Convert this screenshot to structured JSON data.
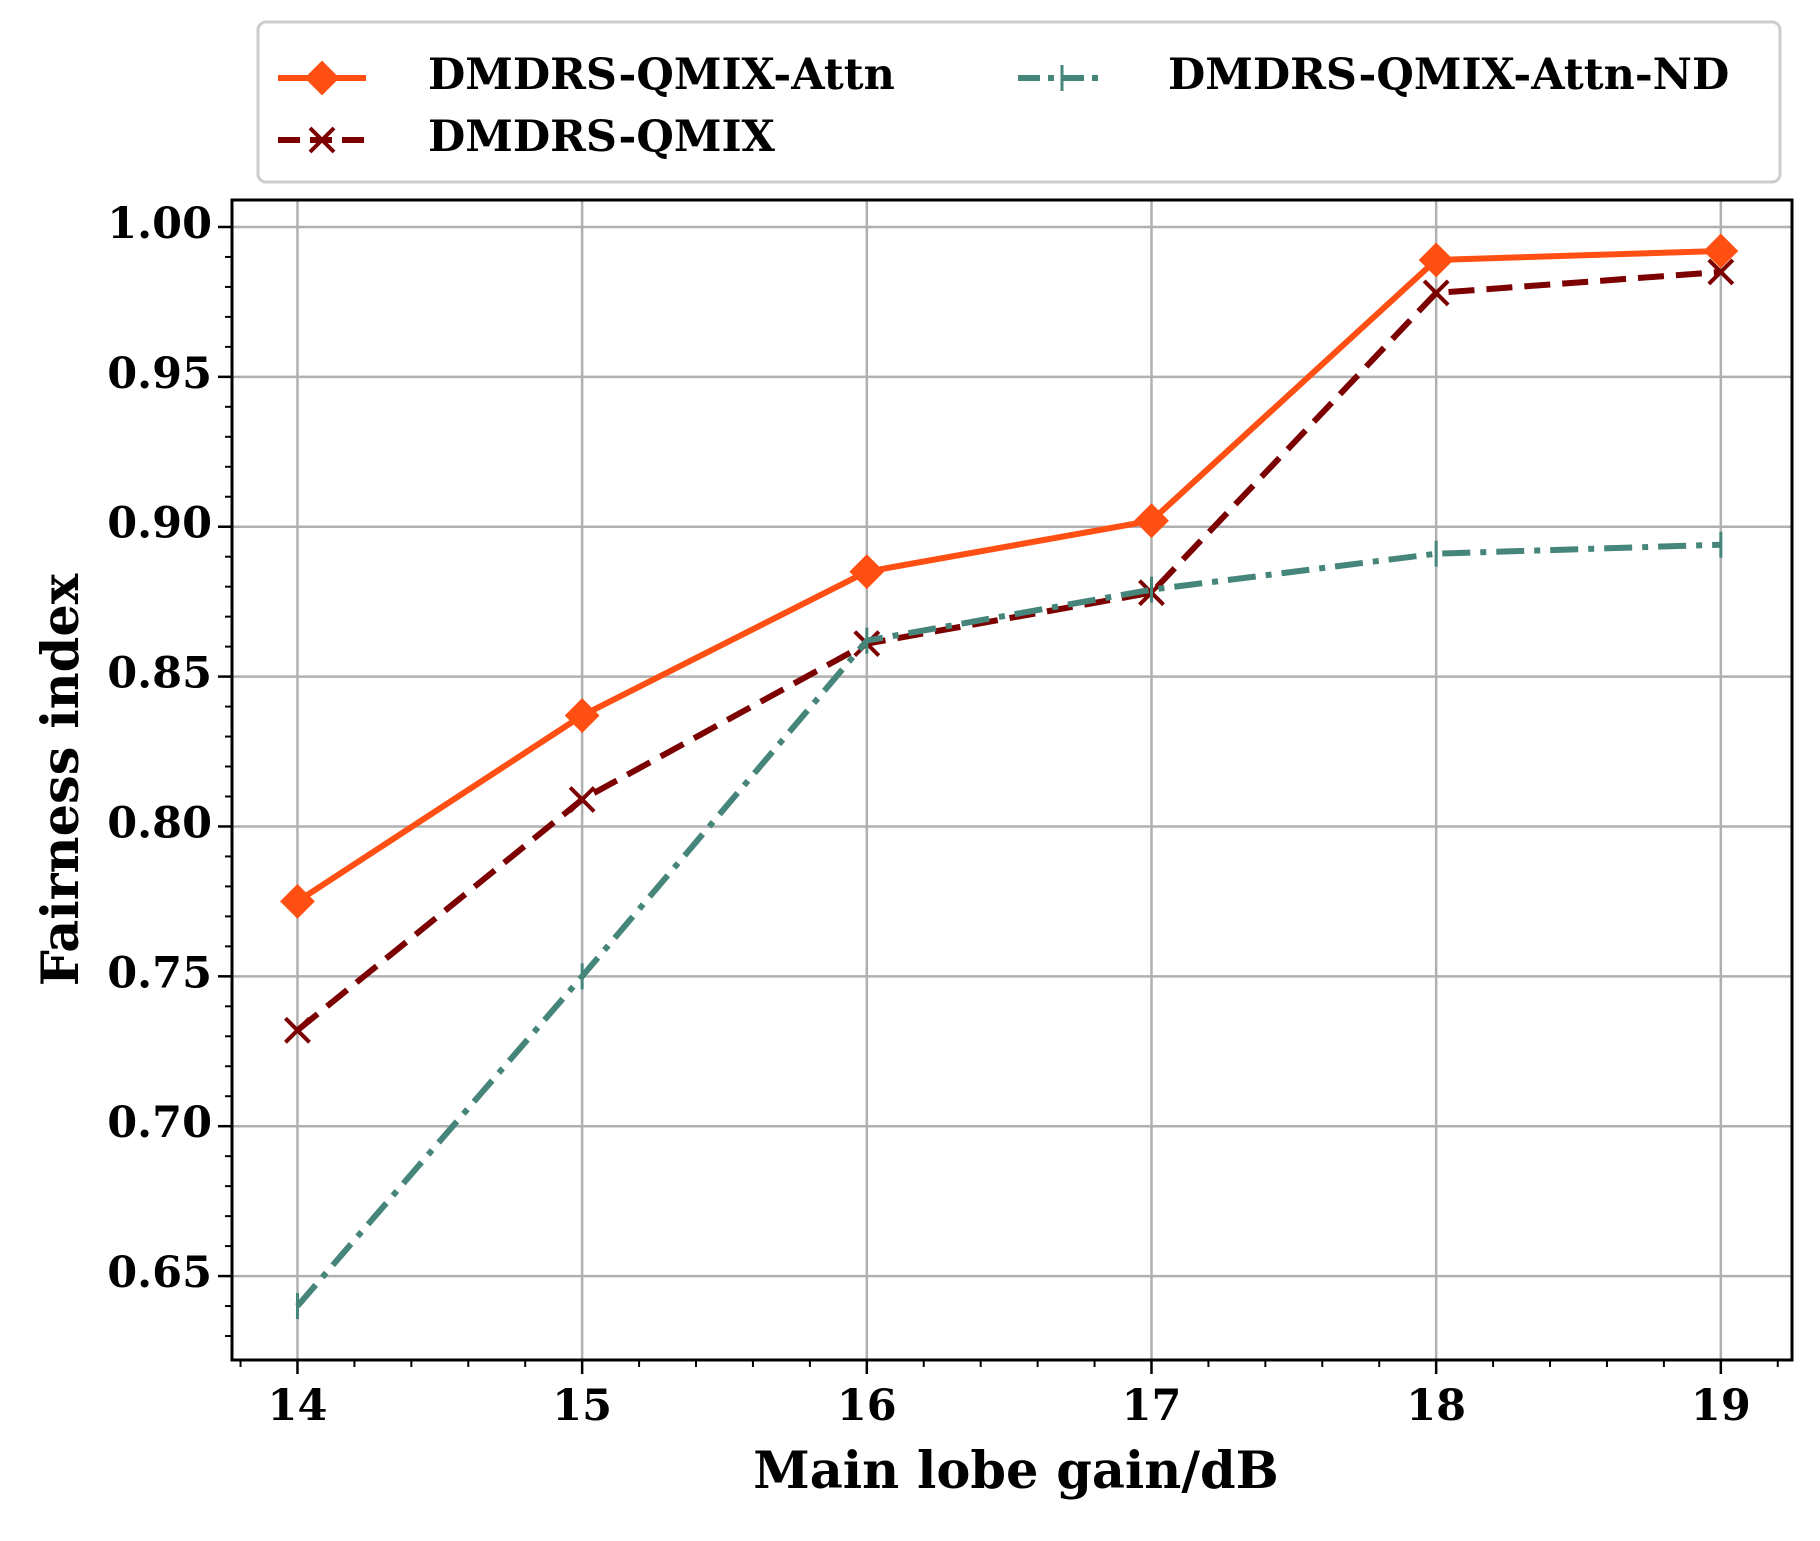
{
  "chart_data": {
    "type": "line",
    "title": "",
    "xlabel": "Main lobe gain/dB",
    "ylabel": "Fairness index",
    "x": [
      14,
      15,
      16,
      17,
      18,
      19
    ],
    "x_tick_labels": [
      "14",
      "15",
      "16",
      "17",
      "18",
      "19"
    ],
    "xlim": [
      13.77,
      19.25
    ],
    "ylim": [
      0.622,
      1.009
    ],
    "y_ticks": [
      0.65,
      0.7,
      0.75,
      0.8,
      0.85,
      0.9,
      0.95,
      1.0
    ],
    "y_tick_labels": [
      "0.65",
      "0.70",
      "0.75",
      "0.80",
      "0.85",
      "0.90",
      "0.95",
      "1.00"
    ],
    "grid": true,
    "legend_position": "top, above plot",
    "series": [
      {
        "name": "DMDRS-QMIX-Attn",
        "color": "#ff4f12",
        "line_style": "solid",
        "marker": "diamond",
        "values": [
          0.775,
          0.837,
          0.885,
          0.902,
          0.989,
          0.992
        ]
      },
      {
        "name": "DMDRS-QMIX",
        "color": "#7c0000",
        "line_style": "dashed",
        "marker": "x",
        "values": [
          0.732,
          0.809,
          0.861,
          0.878,
          0.978,
          0.985
        ]
      },
      {
        "name": "DMDRS-QMIX-Attn-ND",
        "color": "#45857a",
        "line_style": "dashdot",
        "marker": "tick",
        "values": [
          0.64,
          0.75,
          0.862,
          0.879,
          0.891,
          0.894
        ]
      }
    ]
  }
}
